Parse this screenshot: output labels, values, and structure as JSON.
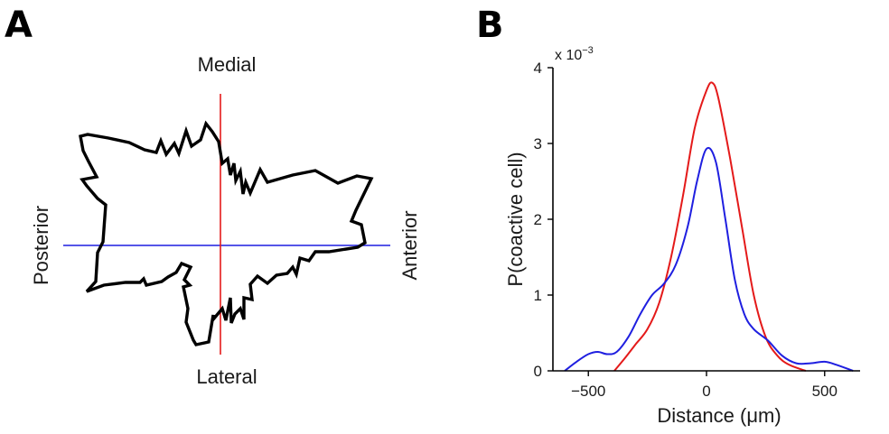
{
  "panels": {
    "a": {
      "letter": "A"
    },
    "b": {
      "letter": "B"
    }
  },
  "chart_data": [
    {
      "type": "polar-shape",
      "directions": {
        "top": "Medial",
        "bottom": "Lateral",
        "left": "Posterior",
        "right": "Anterior"
      },
      "colors": {
        "shape": "#000000",
        "vertical_axis": "#e41a1a",
        "horizontal_axis": "#1f1fe0"
      }
    },
    {
      "type": "line",
      "xlabel": "Distance (μm)",
      "ylabel": "P(coactive cell)",
      "y_multiplier": "x 10",
      "y_multiplier_exp": "−3",
      "xlim": [
        -650,
        650
      ],
      "ylim": [
        0,
        4
      ],
      "xticks": [
        -500,
        0,
        500
      ],
      "xtick_labels": [
        "−500",
        "0",
        "500"
      ],
      "yticks": [
        0,
        1,
        2,
        3,
        4
      ],
      "ytick_labels": [
        "0",
        "1",
        "2",
        "3",
        "4"
      ],
      "series": [
        {
          "color": "#e41a1a",
          "x": [
            -390,
            -350,
            -300,
            -250,
            -200,
            -150,
            -100,
            -50,
            0,
            25,
            50,
            100,
            150,
            200,
            250,
            300,
            350,
            420
          ],
          "y": [
            0.0,
            0.15,
            0.35,
            0.55,
            0.9,
            1.5,
            2.3,
            3.2,
            3.7,
            3.8,
            3.6,
            2.8,
            1.9,
            1.0,
            0.45,
            0.2,
            0.08,
            0.0
          ]
        },
        {
          "color": "#1f1fe0",
          "x": [
            -600,
            -550,
            -500,
            -460,
            -420,
            -380,
            -330,
            -280,
            -230,
            -180,
            -130,
            -80,
            -40,
            0,
            40,
            80,
            120,
            160,
            200,
            260,
            320,
            380,
            440,
            500,
            550,
            620
          ],
          "y": [
            0.0,
            0.12,
            0.22,
            0.25,
            0.22,
            0.25,
            0.45,
            0.75,
            1.0,
            1.15,
            1.4,
            1.9,
            2.5,
            2.93,
            2.75,
            2.0,
            1.2,
            0.75,
            0.55,
            0.4,
            0.2,
            0.1,
            0.1,
            0.12,
            0.08,
            0.0
          ]
        }
      ]
    }
  ]
}
